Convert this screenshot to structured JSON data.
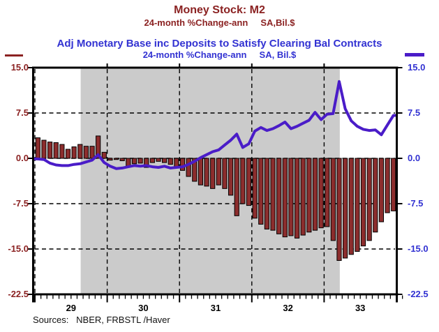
{
  "header": {
    "series1_title": "Money Stock: M2",
    "series1_subtitle": "24-month %Change-ann     SA,Bil.$",
    "series2_title": "Adj Monetary Base inc Deposits to Satisfy Clearing Bal Contracts",
    "series2_subtitle": "24-month %Change-ann     SA, Bil.$"
  },
  "footer": {
    "sources": "Sources:   NBER, FRBSTL /Haver"
  },
  "colors": {
    "series1_text": "#8b2222",
    "series2_text": "#3232d2",
    "bar_fill": "#8c2d2d",
    "bar_stroke": "#000000",
    "line": "#4a1cc8",
    "recession_band": "#cbcbcb",
    "axis": "#000000"
  },
  "chart_data": {
    "type": "bar",
    "combo": "monthly bars (M2) with overlaid line (Adj Monetary Base), shared y-axis",
    "x_unit": "monthly, January 1929 through December 1933",
    "x_year_labels": [
      "29",
      "30",
      "31",
      "32",
      "33"
    ],
    "ylim": [
      -22.5,
      15.0
    ],
    "ytick_values": [
      15.0,
      7.5,
      0.0,
      -7.5,
      -15.0,
      -22.5
    ],
    "ytick_labels_left": [
      "15.0",
      "7.5",
      "0.0",
      "-7.5",
      "-15.0",
      "-22.5"
    ],
    "ytick_labels_right": [
      "15.0",
      "7.5",
      "0.0",
      "-7.5",
      "-15.0",
      "-22.5"
    ],
    "grid": "dashed horizontal lines at 7.5, 0.0, -7.5, -15.0; dashed vertical lines at each January",
    "legend_position": "swatches beside titles: thin dark-red rule top-left, thick purple rule top-right",
    "recession_band": {
      "from_month_index": 7.6,
      "to_month_index": 50.6
    },
    "series": [
      {
        "name": "Money Stock: M2, 24-month %Change-ann",
        "type": "bar",
        "values": [
          3.4,
          3.0,
          2.7,
          2.6,
          2.3,
          1.5,
          1.9,
          2.3,
          2.0,
          2.0,
          3.7,
          1.0,
          -0.3,
          -0.2,
          -0.4,
          -1.3,
          -0.9,
          -0.8,
          -1.5,
          -0.7,
          -0.5,
          -0.7,
          -1.0,
          -1.5,
          -2.0,
          -3.0,
          -3.8,
          -4.4,
          -4.6,
          -5.0,
          -4.4,
          -5.0,
          -6.1,
          -9.5,
          -7.5,
          -7.8,
          -9.9,
          -10.9,
          -11.7,
          -11.9,
          -12.5,
          -13.0,
          -12.8,
          -13.2,
          -12.7,
          -12.2,
          -11.9,
          -11.5,
          -11.3,
          -13.6,
          -16.9,
          -16.5,
          -15.9,
          -15.4,
          -14.5,
          -13.6,
          -12.2,
          -10.5,
          -9.0,
          -8.7
        ]
      },
      {
        "name": "Adj Monetary Base inc Deposits to Satisfy Clearing Bal Contracts, 24-month %Change-ann",
        "type": "line",
        "values": [
          -0.1,
          -0.2,
          -0.8,
          -1.1,
          -1.2,
          -1.2,
          -1.0,
          -0.9,
          -0.6,
          -0.3,
          0.6,
          -0.7,
          -1.3,
          -1.7,
          -1.6,
          -1.4,
          -1.2,
          -1.3,
          -1.2,
          -1.4,
          -1.5,
          -1.3,
          -1.6,
          -1.5,
          -1.4,
          -1.0,
          -0.5,
          0.1,
          0.6,
          1.1,
          1.4,
          2.2,
          3.0,
          4.0,
          1.8,
          2.4,
          4.5,
          5.1,
          4.6,
          4.9,
          5.4,
          6.0,
          4.9,
          5.3,
          5.8,
          6.3,
          7.6,
          6.4,
          7.3,
          7.4,
          12.7,
          8.2,
          6.2,
          5.3,
          4.8,
          4.6,
          4.7,
          3.9,
          5.5,
          7.1
        ]
      }
    ]
  }
}
